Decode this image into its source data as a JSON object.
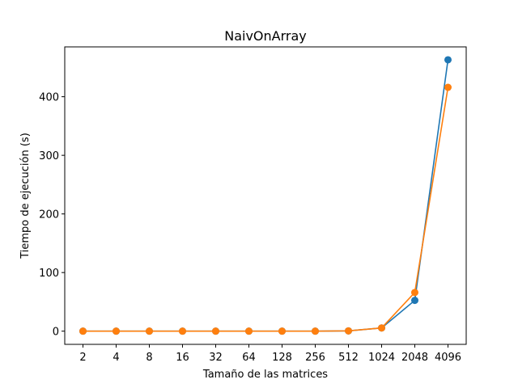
{
  "chart_data": {
    "type": "line",
    "title": "NaivOnArray",
    "xlabel": "Tamaño de las matrices",
    "ylabel": "Tiempo de ejecución (s)",
    "categories": [
      "2",
      "4",
      "8",
      "16",
      "32",
      "64",
      "128",
      "256",
      "512",
      "1024",
      "2048",
      "4096"
    ],
    "y_ticks": [
      0,
      100,
      200,
      300,
      400
    ],
    "ylim": [
      -22.5,
      485
    ],
    "grid": false,
    "series": [
      {
        "color": "#1f77b4",
        "values": [
          0,
          0,
          0,
          0,
          0,
          0,
          0,
          0,
          0.5,
          5.5,
          52.5,
          463
        ]
      },
      {
        "color": "#ff7f0e",
        "values": [
          0,
          0,
          0,
          0,
          0,
          0,
          0,
          0,
          0.5,
          5.5,
          66,
          416
        ]
      }
    ]
  }
}
